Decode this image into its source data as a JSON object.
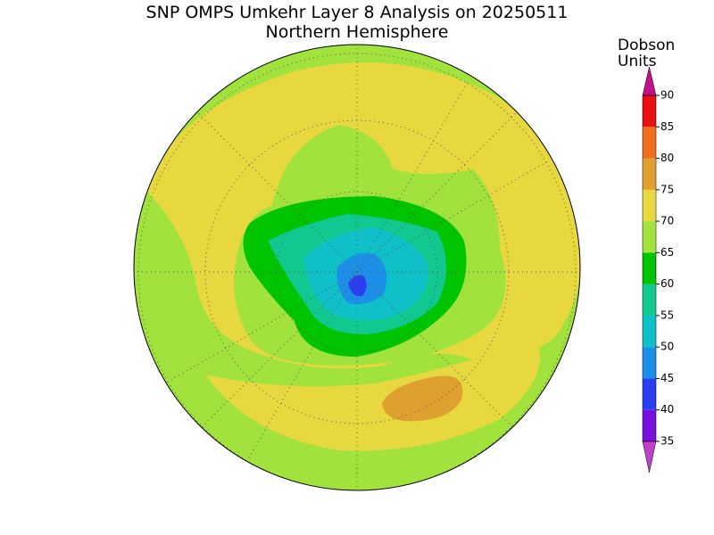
{
  "title": "SNP OMPS Umkehr Layer 8 Analysis on 20250511",
  "subtitle": "Northern Hemisphere",
  "colorbar": {
    "label_lines": [
      "Dobson",
      "Units"
    ],
    "ticks": [
      35,
      40,
      45,
      50,
      55,
      60,
      65,
      70,
      75,
      80,
      85,
      90
    ],
    "colors": [
      "#7a10e0",
      "#2a40f0",
      "#1c90e8",
      "#10c0c8",
      "#10c890",
      "#00c400",
      "#a2e23c",
      "#e8d840",
      "#e0a030",
      "#f07020",
      "#e81010"
    ],
    "under_color": "#c040c8",
    "over_color": "#c0108a"
  }
}
